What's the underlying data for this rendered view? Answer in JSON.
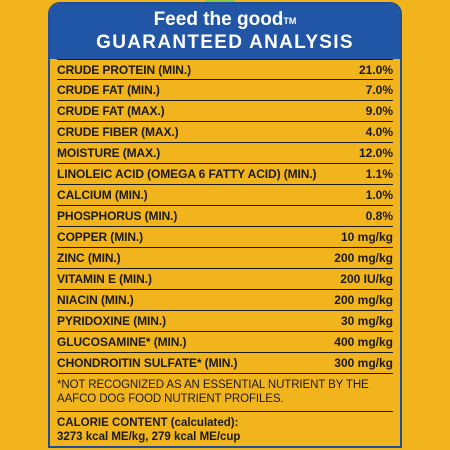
{
  "header": {
    "title": "Feed the good",
    "trademark": "TM",
    "subtitle": "GUARANTEED ANALYSIS"
  },
  "analysis": [
    {
      "name": "CRUDE PROTEIN (MIN.)",
      "value": "21.0%"
    },
    {
      "name": "CRUDE FAT (MIN.)",
      "value": "7.0%"
    },
    {
      "name": "CRUDE FAT (MAX.)",
      "value": "9.0%"
    },
    {
      "name": "CRUDE FIBER (MAX.)",
      "value": "4.0%"
    },
    {
      "name": "MOISTURE (MAX.)",
      "value": "12.0%"
    },
    {
      "name": "LINOLEIC ACID (OMEGA 6 FATTY ACID) (MIN.)",
      "value": "1.1%"
    },
    {
      "name": "CALCIUM (MIN.)",
      "value": "1.0%"
    },
    {
      "name": "PHOSPHORUS (MIN.)",
      "value": "0.8%"
    },
    {
      "name": "COPPER (MIN.)",
      "value": "10 mg/kg"
    },
    {
      "name": "ZINC (MIN.)",
      "value": "200 mg/kg"
    },
    {
      "name": "VITAMIN E (MIN.)",
      "value": "200 IU/kg"
    },
    {
      "name": "NIACIN (MIN.)",
      "value": "200 mg/kg"
    },
    {
      "name": "PYRIDOXINE (MIN.)",
      "value": "30 mg/kg"
    },
    {
      "name": "GLUCOSAMINE* (MIN.)",
      "value": "400 mg/kg"
    },
    {
      "name": "CHONDROITIN SULFATE* (MIN.)",
      "value": "300 mg/kg"
    }
  ],
  "footnote": "*NOT RECOGNIZED AS AN ESSENTIAL NUTRIENT BY THE AAFCO DOG FOOD NUTRIENT PROFILES.",
  "calorie": {
    "label": "CALORIE CONTENT (calculated):",
    "value": "3273 kcal ME/kg, 279 kcal ME/cup"
  },
  "colors": {
    "background": "#f2b41c",
    "header": "#2155a6",
    "leaf": "#8cc63f"
  }
}
